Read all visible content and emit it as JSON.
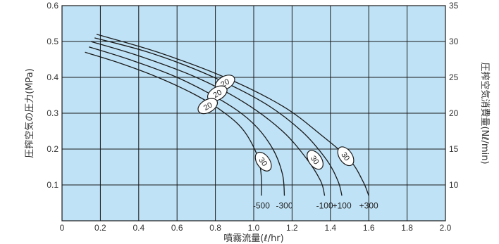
{
  "chart_data": {
    "type": "line",
    "title": "",
    "xlabel": "噴霧流量(ℓ/hr)",
    "ylabel": "圧搾空気の圧力(MPa)",
    "y2label": "圧搾空気消費量(Nℓ/min)",
    "xlim": [
      0,
      2.0
    ],
    "ylim": [
      0,
      0.6
    ],
    "y2lim": [
      5,
      35
    ],
    "x_ticks": [
      "0",
      "0.2",
      "0.4",
      "0.6",
      "0.8",
      "1.0",
      "1.2",
      "1.4",
      "1.6",
      "1.8",
      "2.0"
    ],
    "y_ticks": [
      "0.1",
      "0.2",
      "0.3",
      "0.4",
      "0.5",
      "0.6"
    ],
    "y2_ticks": [
      "10",
      "15",
      "20",
      "25",
      "30",
      "35"
    ],
    "grid": true,
    "colors": {
      "plot_bg": "#bfe2f6",
      "grid": "#1a1a1a",
      "curve": "#1a1a1a"
    },
    "series": [
      {
        "name": "-500",
        "x": [
          0.12,
          0.3,
          0.5,
          0.7,
          0.85,
          0.95,
          1.02,
          1.04,
          1.04
        ],
        "y": [
          0.47,
          0.44,
          0.4,
          0.35,
          0.3,
          0.25,
          0.18,
          0.12,
          0.07
        ]
      },
      {
        "name": "-300",
        "x": [
          0.14,
          0.35,
          0.6,
          0.85,
          1.0,
          1.1,
          1.15,
          1.16
        ],
        "y": [
          0.485,
          0.45,
          0.4,
          0.33,
          0.27,
          0.2,
          0.13,
          0.07
        ]
      },
      {
        "name": "-100",
        "x": [
          0.15,
          0.4,
          0.7,
          0.95,
          1.15,
          1.28,
          1.35,
          1.37
        ],
        "y": [
          0.5,
          0.46,
          0.4,
          0.33,
          0.25,
          0.17,
          0.11,
          0.07
        ]
      },
      {
        "name": "+100",
        "x": [
          0.17,
          0.45,
          0.75,
          1.05,
          1.25,
          1.38,
          1.44,
          1.46
        ],
        "y": [
          0.51,
          0.47,
          0.41,
          0.33,
          0.25,
          0.17,
          0.11,
          0.07
        ]
      },
      {
        "name": "+300",
        "x": [
          0.18,
          0.5,
          0.85,
          1.15,
          1.35,
          1.5,
          1.57,
          1.6
        ],
        "y": [
          0.52,
          0.47,
          0.4,
          0.32,
          0.24,
          0.17,
          0.11,
          0.07
        ]
      }
    ],
    "annotations": [
      {
        "text": "20",
        "x": 0.85,
        "y": 0.385
      },
      {
        "text": "20",
        "x": 0.81,
        "y": 0.355
      },
      {
        "text": "20",
        "x": 0.76,
        "y": 0.32
      },
      {
        "text": "30",
        "x": 1.05,
        "y": 0.165
      },
      {
        "text": "30",
        "x": 1.32,
        "y": 0.17
      },
      {
        "text": "30",
        "x": 1.48,
        "y": 0.18
      }
    ]
  }
}
